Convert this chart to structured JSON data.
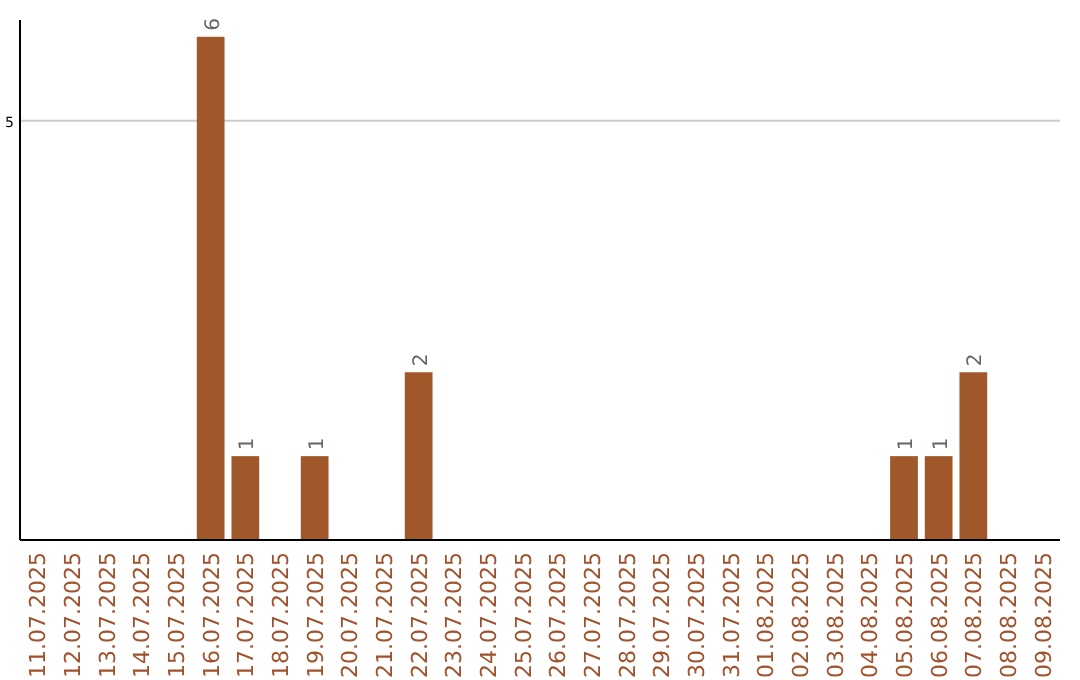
{
  "chart_data": {
    "type": "bar",
    "categories": [
      "11.07.2025",
      "12.07.2025",
      "13.07.2025",
      "14.07.2025",
      "15.07.2025",
      "16.07.2025",
      "17.07.2025",
      "18.07.2025",
      "19.07.2025",
      "20.07.2025",
      "21.07.2025",
      "22.07.2025",
      "23.07.2025",
      "24.07.2025",
      "25.07.2025",
      "26.07.2025",
      "27.07.2025",
      "28.07.2025",
      "29.07.2025",
      "30.07.2025",
      "31.07.2025",
      "01.08.2025",
      "02.08.2025",
      "03.08.2025",
      "04.08.2025",
      "05.08.2025",
      "06.08.2025",
      "07.08.2025",
      "08.08.2025",
      "09.08.2025"
    ],
    "values": [
      0,
      0,
      0,
      0,
      0,
      6,
      1,
      0,
      1,
      0,
      0,
      2,
      0,
      0,
      0,
      0,
      0,
      0,
      0,
      0,
      0,
      0,
      0,
      0,
      0,
      1,
      1,
      2,
      0,
      0
    ],
    "value_labels": [
      null,
      null,
      null,
      null,
      null,
      "6",
      "1",
      null,
      "1",
      null,
      null,
      "2",
      null,
      null,
      null,
      null,
      null,
      null,
      null,
      null,
      null,
      null,
      null,
      null,
      null,
      "1",
      "1",
      "2",
      null,
      null
    ],
    "color": "#a0582a",
    "ylim": [
      0,
      6.2
    ],
    "yticks": [
      5
    ],
    "grid": "y"
  }
}
